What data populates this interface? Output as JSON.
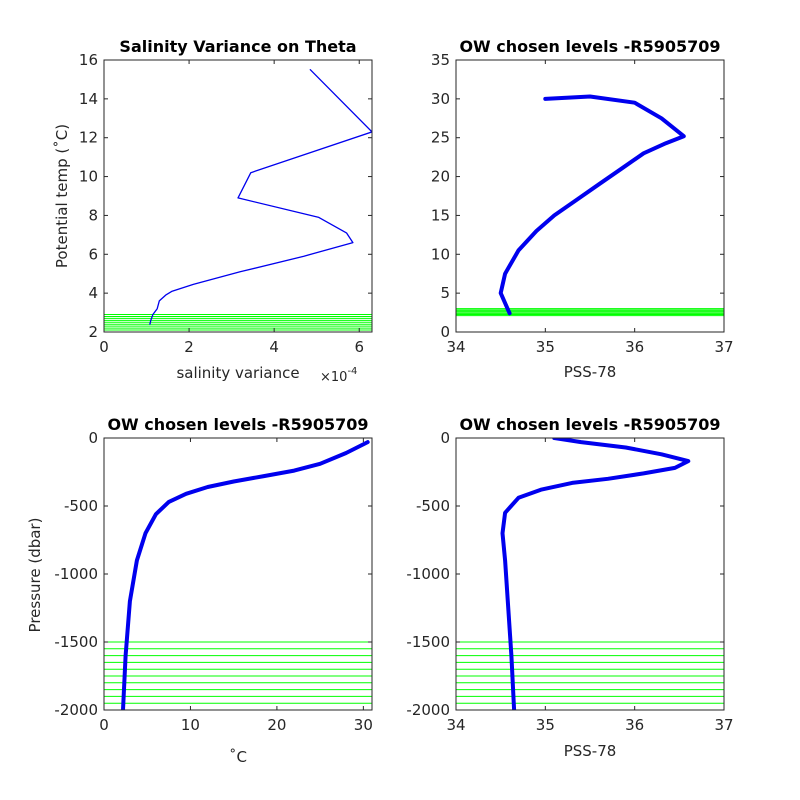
{
  "colors": {
    "profile": "#0000ee",
    "levels": "#00ff00",
    "axes": "#262626"
  },
  "chart_data": [
    {
      "id": "p1",
      "type": "line",
      "title": "Salinity Variance on Theta",
      "xlabel": "salinity variance",
      "x_exponent_label": "×10",
      "x_exponent_power": "-4",
      "ylabel": "Potential temp (˚C)",
      "xlim": [
        0,
        6.3
      ],
      "ylim": [
        2,
        16
      ],
      "xticks": [
        0,
        2,
        4,
        6
      ],
      "xticklabels": [
        "0",
        "2",
        "4",
        "6"
      ],
      "yticks": [
        2,
        4,
        6,
        8,
        10,
        12,
        14,
        16
      ],
      "yticklabels": [
        "2",
        "4",
        "6",
        "8",
        "10",
        "12",
        "14",
        "16"
      ],
      "series": [
        {
          "x": [
            4.85,
            6.3,
            3.45,
            3.15,
            5.05,
            5.7,
            5.85,
            4.7,
            3.2,
            2.1,
            1.6,
            1.45,
            1.3,
            1.25,
            1.15,
            1.1,
            1.08
          ],
          "y": [
            15.5,
            12.3,
            10.2,
            8.9,
            7.9,
            7.1,
            6.6,
            5.9,
            5.1,
            4.45,
            4.1,
            3.9,
            3.6,
            3.2,
            2.9,
            2.6,
            2.4
          ]
        }
      ],
      "hlines": [
        2.1,
        2.2,
        2.3,
        2.4,
        2.5,
        2.6,
        2.7,
        2.8,
        2.9
      ]
    },
    {
      "id": "p2",
      "type": "line",
      "title": "OW chosen levels -R5905709",
      "xlabel": "PSS-78",
      "ylabel": "",
      "xlim": [
        34,
        37
      ],
      "ylim": [
        0,
        35
      ],
      "xticks": [
        34,
        35,
        36,
        37
      ],
      "xticklabels": [
        "34",
        "35",
        "36",
        "37"
      ],
      "yticks": [
        0,
        5,
        10,
        15,
        20,
        25,
        30,
        35
      ],
      "yticklabels": [
        "0",
        "5",
        "10",
        "15",
        "20",
        "25",
        "30",
        "35"
      ],
      "series": [
        {
          "x": [
            34.6,
            34.5,
            34.55,
            34.7,
            34.9,
            35.1,
            35.35,
            35.6,
            35.85,
            36.1,
            36.35,
            36.55,
            36.3,
            36.0,
            35.5,
            35.0
          ],
          "y": [
            2.4,
            5.0,
            7.5,
            10.5,
            13.0,
            15.0,
            17.0,
            19.0,
            21.0,
            23.0,
            24.3,
            25.2,
            27.5,
            29.5,
            30.3,
            30.0
          ]
        }
      ],
      "hlines": [
        2.1,
        2.25,
        2.4,
        2.55,
        2.7,
        2.85,
        3.0
      ]
    },
    {
      "id": "p3",
      "type": "line",
      "title": "OW chosen levels -R5905709",
      "xlabel": "˚C",
      "ylabel": "Pressure (dbar)",
      "xlim": [
        0,
        31
      ],
      "ylim": [
        -2000,
        0
      ],
      "xticks": [
        0,
        10,
        20,
        30
      ],
      "xticklabels": [
        "0",
        "10",
        "20",
        "30"
      ],
      "yticks": [
        -2000,
        -1500,
        -1000,
        -500,
        0
      ],
      "yticklabels": [
        "-2000",
        "-1500",
        "-1000",
        "-500",
        "0"
      ],
      "series": [
        {
          "x": [
            2.2,
            2.5,
            3.0,
            3.8,
            4.8,
            6.0,
            7.5,
            9.5,
            12.0,
            15.0,
            18.5,
            22.0,
            25.0,
            28.0,
            30.5
          ],
          "y": [
            -2000,
            -1600,
            -1200,
            -900,
            -700,
            -560,
            -470,
            -410,
            -360,
            -320,
            -280,
            -240,
            -190,
            -110,
            -30
          ]
        }
      ],
      "hlines": [
        -1500,
        -1550,
        -1600,
        -1650,
        -1700,
        -1750,
        -1800,
        -1850,
        -1900,
        -1950,
        -2000
      ]
    },
    {
      "id": "p4",
      "type": "line",
      "title": "OW chosen levels -R5905709",
      "xlabel": "PSS-78",
      "ylabel": "",
      "xlim": [
        34,
        37
      ],
      "ylim": [
        -2000,
        0
      ],
      "xticks": [
        34,
        35,
        36,
        37
      ],
      "xticklabels": [
        "34",
        "35",
        "36",
        "37"
      ],
      "yticks": [
        -2000,
        -1500,
        -1000,
        -500,
        0
      ],
      "yticklabels": [
        "-2000",
        "-1500",
        "-1000",
        "-500",
        "0"
      ],
      "series": [
        {
          "x": [
            34.65,
            34.62,
            34.58,
            34.55,
            34.52,
            34.55,
            34.7,
            34.95,
            35.3,
            35.7,
            36.1,
            36.45,
            36.6,
            36.3,
            35.9,
            35.4,
            35.1
          ],
          "y": [
            -2000,
            -1600,
            -1200,
            -900,
            -700,
            -550,
            -440,
            -380,
            -330,
            -300,
            -260,
            -220,
            -170,
            -120,
            -70,
            -30,
            0
          ]
        }
      ],
      "hlines": [
        -1500,
        -1550,
        -1600,
        -1650,
        -1700,
        -1750,
        -1800,
        -1850,
        -1900,
        -1950,
        -2000
      ]
    }
  ]
}
